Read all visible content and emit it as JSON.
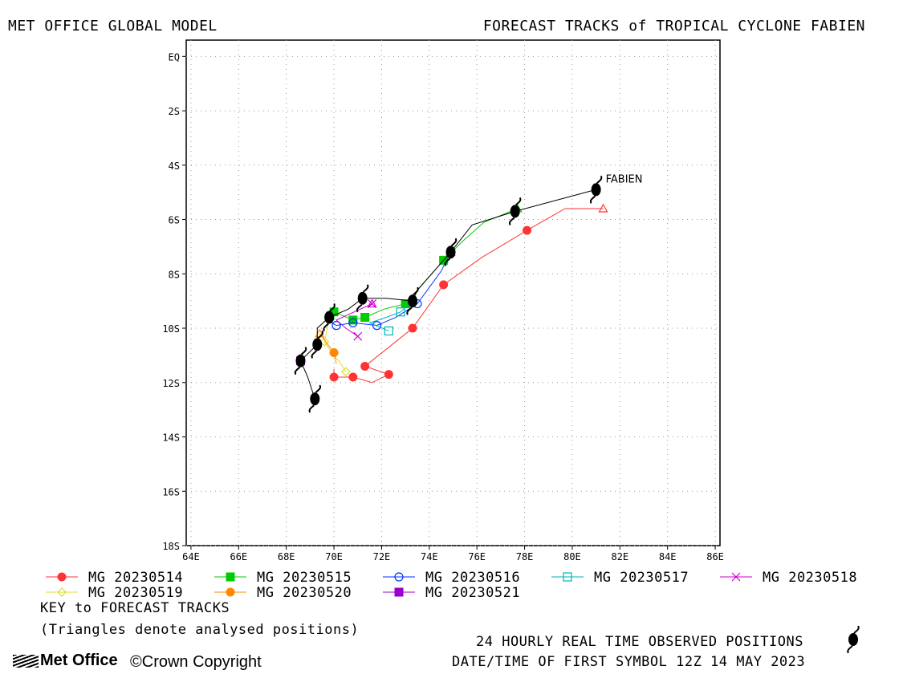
{
  "header": {
    "left_title": "MET OFFICE GLOBAL MODEL",
    "right_title": "FORECAST TRACKS of TROPICAL CYCLONE FABIEN"
  },
  "footer": {
    "key_title": "KEY to FORECAST TRACKS",
    "triangles_note": "(Triangles denote analysed positions)",
    "observed_note": "24 HOURLY REAL TIME OBSERVED POSITIONS",
    "first_symbol_note": "DATE/TIME OF FIRST SYMBOL 12Z 14 MAY 2023",
    "logo_text": "Met Office",
    "copyright": "Crown Copyright"
  },
  "chart_data": {
    "type": "line",
    "storm_label": "FABIEN",
    "xlim": [
      63.8,
      86.2
    ],
    "ylim": [
      -18.0,
      0.6
    ],
    "x_ticks": [
      64,
      66,
      68,
      70,
      72,
      74,
      76,
      78,
      80,
      82,
      84,
      86
    ],
    "x_tick_labels": [
      "64E",
      "66E",
      "68E",
      "70E",
      "72E",
      "74E",
      "76E",
      "78E",
      "80E",
      "82E",
      "84E",
      "86E"
    ],
    "y_ticks": [
      0,
      -2,
      -4,
      -6,
      -8,
      -10,
      -12,
      -14,
      -16,
      -18
    ],
    "y_tick_labels": [
      "EQ",
      "2S",
      "4S",
      "6S",
      "8S",
      "10S",
      "12S",
      "14S",
      "16S",
      "18S"
    ],
    "grid": true,
    "legend_placement": "bottom",
    "observed_track": {
      "marker": "cyclone-symbol",
      "points": [
        [
          81.0,
          -4.9
        ],
        [
          77.6,
          -5.7
        ],
        [
          75.8,
          -6.2
        ],
        [
          74.9,
          -7.2
        ],
        [
          73.5,
          -8.6
        ],
        [
          73.3,
          -9.0
        ],
        [
          72.2,
          -8.9
        ],
        [
          71.2,
          -8.9
        ],
        [
          70.6,
          -9.3
        ],
        [
          69.8,
          -9.6
        ],
        [
          69.3,
          -10.0
        ],
        [
          69.3,
          -10.6
        ],
        [
          68.6,
          -11.2
        ],
        [
          68.9,
          -11.8
        ],
        [
          69.2,
          -12.6
        ]
      ],
      "symbol_points": [
        [
          81.0,
          -4.9
        ],
        [
          77.6,
          -5.7
        ],
        [
          74.9,
          -7.2
        ],
        [
          73.3,
          -9.0
        ],
        [
          71.2,
          -8.9
        ],
        [
          69.8,
          -9.6
        ],
        [
          69.3,
          -10.6
        ],
        [
          68.6,
          -11.2
        ],
        [
          69.2,
          -12.6
        ]
      ]
    },
    "series": [
      {
        "name": "MG 20230514",
        "color": "#ff3333",
        "marker": "filled-circle",
        "triangle": [
          81.3,
          -5.6
        ],
        "points": [
          [
            81.3,
            -5.6
          ],
          [
            79.7,
            -5.6
          ],
          [
            78.1,
            -6.4
          ],
          [
            76.2,
            -7.4
          ],
          [
            74.6,
            -8.4
          ],
          [
            73.3,
            -10.0
          ],
          [
            71.3,
            -11.4
          ],
          [
            72.3,
            -11.7
          ],
          [
            71.6,
            -12.0
          ],
          [
            70.8,
            -11.8
          ],
          [
            70.0,
            -11.8
          ],
          [
            70.0,
            -11.5
          ]
        ],
        "marker_points": [
          [
            78.1,
            -6.4
          ],
          [
            74.6,
            -8.4
          ],
          [
            73.3,
            -10.0
          ],
          [
            71.3,
            -11.4
          ],
          [
            72.3,
            -11.7
          ],
          [
            70.8,
            -11.8
          ],
          [
            70.0,
            -11.8
          ]
        ]
      },
      {
        "name": "MG 20230515",
        "color": "#00cc00",
        "marker": "filled-square",
        "triangle": [
          77.7,
          -5.6
        ],
        "points": [
          [
            77.7,
            -5.6
          ],
          [
            76.3,
            -6.1
          ],
          [
            75.4,
            -6.8
          ],
          [
            74.6,
            -7.5
          ],
          [
            73.6,
            -8.5
          ],
          [
            73.0,
            -9.1
          ],
          [
            72.1,
            -9.3
          ],
          [
            71.3,
            -9.6
          ],
          [
            70.8,
            -9.7
          ],
          [
            70.0,
            -9.4
          ],
          [
            70.0,
            -9.7
          ]
        ],
        "marker_points": [
          [
            74.6,
            -7.5
          ],
          [
            73.0,
            -9.1
          ],
          [
            71.3,
            -9.6
          ],
          [
            70.8,
            -9.7
          ],
          [
            70.0,
            -9.4
          ]
        ]
      },
      {
        "name": "MG 20230516",
        "color": "#0033ff",
        "marker": "open-circle",
        "triangle": [
          74.9,
          -7.2
        ],
        "points": [
          [
            74.9,
            -7.2
          ],
          [
            74.5,
            -7.9
          ],
          [
            73.5,
            -9.1
          ],
          [
            72.6,
            -9.6
          ],
          [
            71.8,
            -9.9
          ],
          [
            70.8,
            -9.8
          ],
          [
            70.1,
            -9.9
          ],
          [
            69.7,
            -9.7
          ]
        ],
        "marker_points": [
          [
            73.5,
            -9.1
          ],
          [
            71.8,
            -9.9
          ],
          [
            70.8,
            -9.8
          ],
          [
            70.1,
            -9.9
          ]
        ]
      },
      {
        "name": "MG 20230517",
        "color": "#00b3b3",
        "marker": "open-square",
        "triangle": [
          73.3,
          -9.0
        ],
        "points": [
          [
            73.3,
            -9.0
          ],
          [
            72.8,
            -9.4
          ],
          [
            72.2,
            -9.6
          ],
          [
            71.5,
            -9.8
          ],
          [
            72.3,
            -10.1
          ]
        ],
        "marker_points": [
          [
            72.8,
            -9.4
          ],
          [
            72.3,
            -10.1
          ]
        ]
      },
      {
        "name": "MG 20230518",
        "color": "#cc00cc",
        "marker": "x-cross",
        "triangle": [
          71.6,
          -9.1
        ],
        "points": [
          [
            71.6,
            -9.1
          ],
          [
            71.1,
            -9.3
          ],
          [
            70.6,
            -9.5
          ],
          [
            70.1,
            -9.7
          ],
          [
            70.5,
            -10.0
          ],
          [
            71.0,
            -10.3
          ]
        ],
        "marker_points": [
          [
            71.6,
            -9.1
          ],
          [
            71.0,
            -10.3
          ]
        ]
      },
      {
        "name": "MG 20230519",
        "color": "#dddd33",
        "marker": "open-diamond",
        "triangle": [
          69.8,
          -9.6
        ],
        "points": [
          [
            69.8,
            -9.6
          ],
          [
            69.7,
            -10.1
          ],
          [
            69.6,
            -10.5
          ],
          [
            69.9,
            -10.9
          ],
          [
            70.2,
            -11.2
          ],
          [
            70.5,
            -11.6
          ]
        ],
        "marker_points": [
          [
            69.6,
            -10.5
          ],
          [
            70.5,
            -11.6
          ]
        ]
      },
      {
        "name": "MG 20230520",
        "color": "#ff8800",
        "marker": "filled-circle",
        "triangle": [
          69.4,
          -10.2
        ],
        "points": [
          [
            69.4,
            -10.2
          ],
          [
            70.0,
            -10.9
          ],
          [
            70.1,
            -11.3
          ]
        ],
        "marker_points": [
          [
            70.0,
            -10.9
          ]
        ]
      },
      {
        "name": "MG 20230521",
        "color": "#9900cc",
        "marker": "filled-square",
        "triangle": [
          68.6,
          -11.2
        ],
        "points": [
          [
            68.6,
            -11.2
          ]
        ],
        "marker_points": [
          [
            68.6,
            -11.2
          ]
        ]
      }
    ]
  }
}
